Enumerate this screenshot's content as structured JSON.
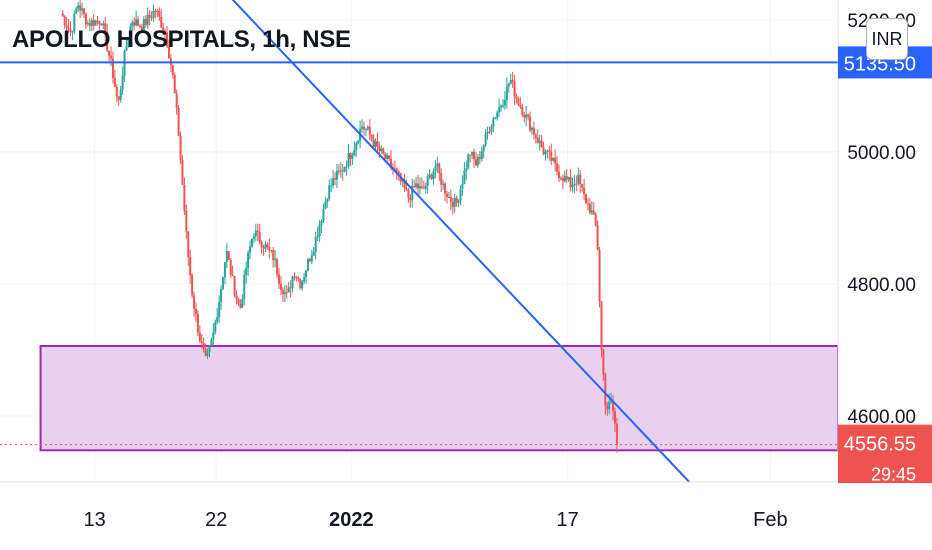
{
  "title": "APOLLO HOSPITALS, 1h, NSE",
  "currency": "INR",
  "colors": {
    "up": "#26a69a",
    "down": "#ef5350",
    "trendline": "#2962ff",
    "zone_border": "#9c27b0",
    "zone_fill": "#e8d0ef",
    "last_price_label": "#ef5350",
    "level_label": "#2962ff"
  },
  "chart_data": {
    "type": "candlestick",
    "y_axis": {
      "range": [
        4500,
        5230
      ],
      "ticks": [
        "4600.00",
        "4800.00",
        "5000.00",
        "5200.00"
      ],
      "partial_top_tick": "5200.00"
    },
    "x_axis": {
      "range": [
        "2021-12-06",
        "2022-02-06"
      ],
      "ticks": [
        {
          "date": "2021-12-13",
          "label": "13",
          "bold": false
        },
        {
          "date": "2021-12-22",
          "label": "22",
          "bold": false
        },
        {
          "date": "2022-01-01",
          "label": "2022",
          "bold": true
        },
        {
          "date": "2022-01-17",
          "label": "17",
          "bold": false
        },
        {
          "date": "2022-02-01",
          "label": "Feb",
          "bold": false
        }
      ]
    },
    "horizontal_level": {
      "price": 5135.5,
      "label": "5135.50"
    },
    "last_price": {
      "price": 4556.55,
      "label": "4556.55",
      "countdown": "29:45"
    },
    "demand_zone": {
      "from_date": "2021-12-09",
      "to_date": "2022-02-06",
      "low": 4548,
      "high": 4706
    },
    "trendline": {
      "start": {
        "date": "2021-12-20",
        "price": 5300
      },
      "end": {
        "date": "2022-01-26",
        "price": 4500
      }
    },
    "price_path": [
      [
        "2021-12-10",
        5210
      ],
      [
        "2021-12-11",
        5180
      ],
      [
        "2021-12-11",
        5225
      ],
      [
        "2021-12-12",
        5195
      ],
      [
        "2021-12-13",
        5200
      ],
      [
        "2021-12-14",
        5130
      ],
      [
        "2021-12-14",
        5070
      ],
      [
        "2021-12-15",
        5150
      ],
      [
        "2021-12-15",
        5200
      ],
      [
        "2021-12-16",
        5190
      ],
      [
        "2021-12-17",
        5215
      ],
      [
        "2021-12-18",
        5180
      ],
      [
        "2021-12-18",
        5120
      ],
      [
        "2021-12-19",
        5040
      ],
      [
        "2021-12-19",
        4950
      ],
      [
        "2021-12-19",
        4860
      ],
      [
        "2021-12-20",
        4780
      ],
      [
        "2021-12-20",
        4720
      ],
      [
        "2021-12-21",
        4680
      ],
      [
        "2021-12-21",
        4720
      ],
      [
        "2021-12-22",
        4780
      ],
      [
        "2021-12-22",
        4850
      ],
      [
        "2021-12-23",
        4800
      ],
      [
        "2021-12-23",
        4760
      ],
      [
        "2021-12-24",
        4830
      ],
      [
        "2021-12-24",
        4880
      ],
      [
        "2021-12-25",
        4860
      ],
      [
        "2021-12-26",
        4840
      ],
      [
        "2021-12-26",
        4800
      ],
      [
        "2021-12-27",
        4780
      ],
      [
        "2021-12-27",
        4820
      ],
      [
        "2021-12-28",
        4800
      ],
      [
        "2021-12-28",
        4830
      ],
      [
        "2021-12-29",
        4860
      ],
      [
        "2021-12-29",
        4900
      ],
      [
        "2021-12-30",
        4940
      ],
      [
        "2021-12-30",
        4960
      ],
      [
        "2021-12-31",
        4970
      ],
      [
        "2021-12-31",
        4990
      ],
      [
        "2022-01-01",
        5010
      ],
      [
        "2022-01-01",
        5040
      ],
      [
        "2022-01-02",
        5030
      ],
      [
        "2022-01-02",
        5010
      ],
      [
        "2022-01-03",
        4990
      ],
      [
        "2022-01-04",
        4970
      ],
      [
        "2022-01-04",
        4950
      ],
      [
        "2022-01-05",
        4930
      ],
      [
        "2022-01-05",
        4950
      ],
      [
        "2022-01-06",
        4940
      ],
      [
        "2022-01-06",
        4960
      ],
      [
        "2022-01-07",
        4980
      ],
      [
        "2022-01-07",
        4950
      ],
      [
        "2022-01-08",
        4930
      ],
      [
        "2022-01-08",
        4920
      ],
      [
        "2022-01-09",
        4960
      ],
      [
        "2022-01-09",
        5000
      ],
      [
        "2022-01-10",
        4980
      ],
      [
        "2022-01-10",
        5010
      ],
      [
        "2022-01-11",
        5040
      ],
      [
        "2022-01-11",
        5060
      ],
      [
        "2022-01-12",
        5080
      ],
      [
        "2022-01-12",
        5110
      ],
      [
        "2022-01-13",
        5080
      ],
      [
        "2022-01-13",
        5060
      ],
      [
        "2022-01-14",
        5040
      ],
      [
        "2022-01-14",
        5020
      ],
      [
        "2022-01-15",
        5000
      ],
      [
        "2022-01-15",
        4990
      ],
      [
        "2022-01-16",
        4970
      ],
      [
        "2022-01-16",
        4960
      ],
      [
        "2022-01-17",
        4950
      ],
      [
        "2022-01-17",
        4960
      ],
      [
        "2022-01-18",
        4930
      ],
      [
        "2022-01-18",
        4910
      ],
      [
        "2022-01-19",
        4880
      ],
      [
        "2022-01-19",
        4700
      ],
      [
        "2022-01-19",
        4610
      ],
      [
        "2022-01-20",
        4620
      ],
      [
        "2022-01-20",
        4556.55
      ]
    ]
  }
}
